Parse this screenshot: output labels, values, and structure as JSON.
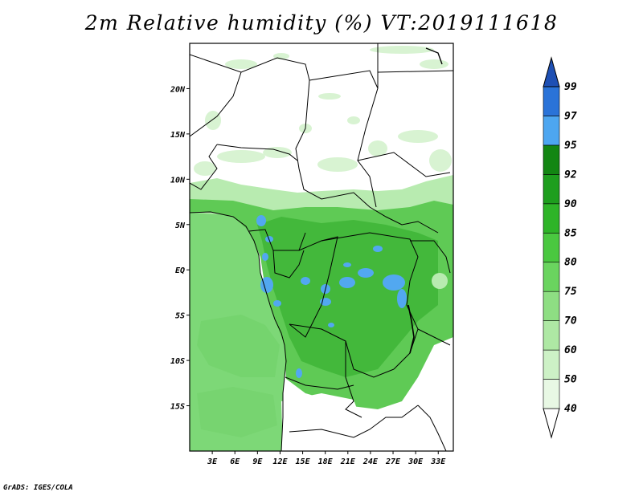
{
  "title": "2m Relative humidity (%) VT:2019111618",
  "credit": "GrADS: IGES/COLA",
  "lat_labels": [
    "20N",
    "15N",
    "10N",
    "5N",
    "EQ",
    "5S",
    "10S",
    "15S"
  ],
  "lon_labels": [
    "3E",
    "6E",
    "9E",
    "12E",
    "15E",
    "18E",
    "21E",
    "24E",
    "27E",
    "30E",
    "33E"
  ],
  "map_extent": {
    "lon_min": 0,
    "lon_max": 35,
    "lat_min": -20,
    "lat_max": 25
  },
  "colorbar": {
    "levels": [
      "40",
      "50",
      "60",
      "70",
      "75",
      "80",
      "85",
      "90",
      "92",
      "95",
      "97",
      "99"
    ],
    "colors": [
      "#ffffff",
      "#e8f8e4",
      "#cdf1c6",
      "#aee8a4",
      "#8ede83",
      "#6ad45f",
      "#4ac840",
      "#2eb428",
      "#1e9e1e",
      "#138613",
      "#4da6f0",
      "#2a73d8",
      "#1e50b4"
    ]
  },
  "fill_colors": {
    "ocean": "#7dd877",
    "ocean_band": "#6ed066",
    "land_dry": "#ffffff",
    "sahel_patch": "#d8f3d2",
    "transition": "#b8ebb0",
    "humid": "#5fca55",
    "forest": "#43b83b",
    "saturated": "#52a8f0",
    "boundary": "#000000"
  }
}
